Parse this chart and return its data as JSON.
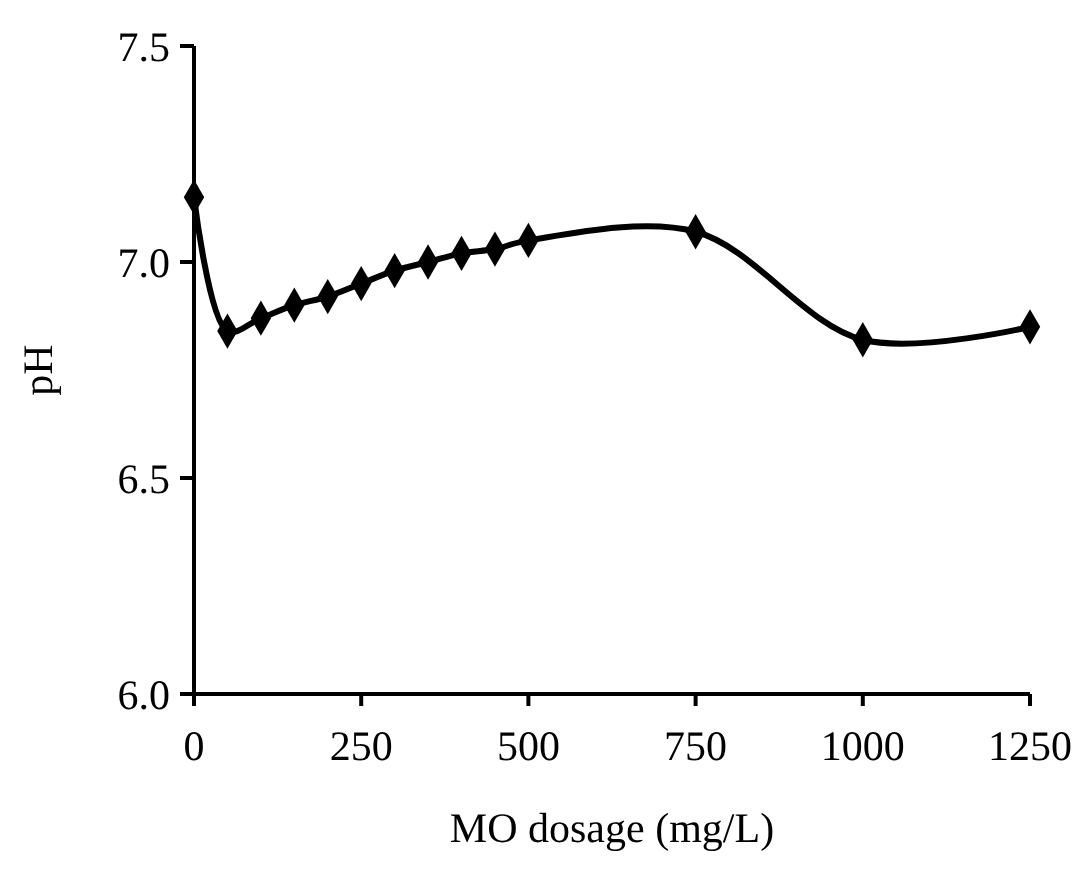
{
  "chart_data": {
    "type": "line",
    "xlabel": "MO dosage (mg/L)",
    "ylabel": "pH",
    "x": [
      0,
      50,
      100,
      150,
      200,
      250,
      300,
      350,
      400,
      450,
      500,
      750,
      1000,
      1250
    ],
    "series": [
      {
        "color": "#000000",
        "values": [
          7.15,
          6.84,
          6.87,
          6.9,
          6.92,
          6.95,
          6.98,
          7.0,
          7.02,
          7.03,
          7.05,
          7.07,
          6.82,
          6.85
        ]
      }
    ],
    "xlim": [
      0,
      1250
    ],
    "xticks": [
      0,
      250,
      500,
      750,
      1000,
      1250
    ],
    "ylim": [
      6.0,
      7.5
    ],
    "yticks": [
      {
        "value": 6.0,
        "label": "6.0"
      },
      {
        "value": 6.5,
        "label": "6.5"
      },
      {
        "value": 7.0,
        "label": "7.0"
      },
      {
        "value": 7.5,
        "label": "7.5"
      }
    ],
    "marker": "diamond"
  }
}
